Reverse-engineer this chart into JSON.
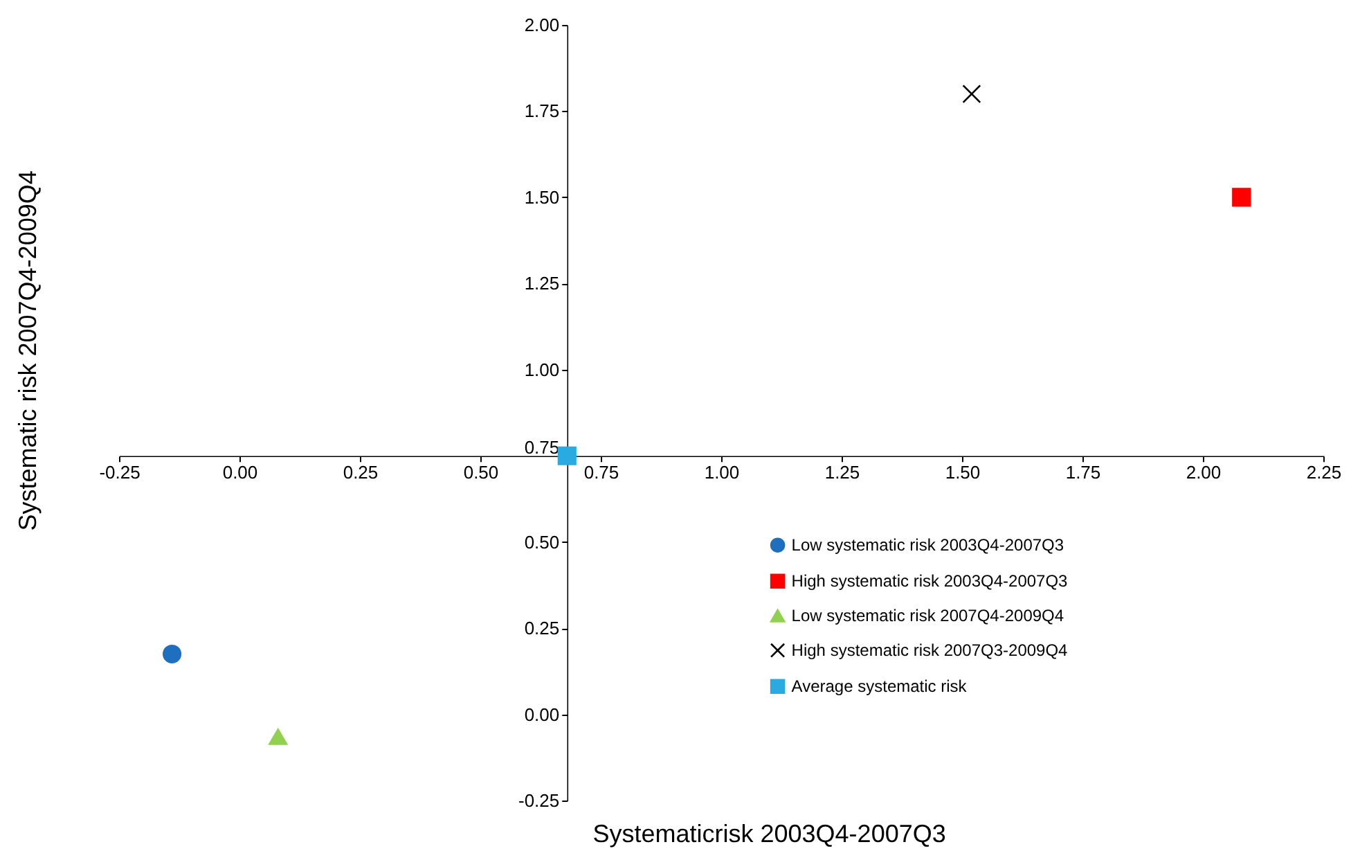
{
  "chart_data": {
    "type": "scatter",
    "xlabel": "Systematicrisk 2003Q4-2007Q3",
    "ylabel": "Systematic risk 2007Q4-2009Q4",
    "xlim": [
      -0.25,
      2.25
    ],
    "ylim": [
      -0.25,
      2.0
    ],
    "xticks": [
      {
        "value": -0.25,
        "label": "-0.25"
      },
      {
        "value": 0,
        "label": "0.00"
      },
      {
        "value": 0.25,
        "label": "0.25"
      },
      {
        "value": 0.5,
        "label": "0.50"
      },
      {
        "value": 0.75,
        "label": "0.75"
      },
      {
        "value": 1,
        "label": "1.00"
      },
      {
        "value": 1.25,
        "label": "1.25"
      },
      {
        "value": 1.5,
        "label": "1.50"
      },
      {
        "value": 1.75,
        "label": "1.75"
      },
      {
        "value": 2,
        "label": "2.00"
      },
      {
        "value": 2.25,
        "label": "2.25"
      }
    ],
    "yticks": [
      {
        "value": -0.25,
        "label": "-0.25"
      },
      {
        "value": 0,
        "label": "0.00"
      },
      {
        "value": 0.25,
        "label": "0.25"
      },
      {
        "value": 0.5,
        "label": "0.50"
      },
      {
        "value": 0.75,
        "label": "0.75"
      },
      {
        "value": 1,
        "label": "1.00"
      },
      {
        "value": 1.25,
        "label": "1.25"
      },
      {
        "value": 1.5,
        "label": "1.50"
      },
      {
        "value": 1.75,
        "label": "1.75"
      },
      {
        "value": 2,
        "label": "2.00"
      }
    ],
    "grid": false,
    "legend": "bottom right",
    "series": [
      {
        "name": "Low systematic risk 2003Q4-2007Q3",
        "color": "#1f6fc0",
        "marker": "circle",
        "x": [
          -0.14
        ],
        "values": [
          0.175
        ]
      },
      {
        "name": "High systematic risk 2003Q4-2007Q3",
        "color": "#ff0000",
        "marker": "square",
        "x": [
          2.08
        ],
        "values": [
          1.5
        ]
      },
      {
        "name": "Low systematic risk 2007Q4-2009Q4",
        "color": "#92d050",
        "marker": "triangle",
        "x": [
          0.08
        ],
        "values": [
          -0.065
        ]
      },
      {
        "name": "High systematic risk 2007Q3-2009Q4",
        "color": "#000000",
        "marker": "cross",
        "x": [
          1.52
        ],
        "values": [
          1.8
        ]
      },
      {
        "name": "Average systematic risk",
        "color": "#29abe2",
        "marker": "square",
        "x": [
          0.68
        ],
        "values": [
          0.75
        ]
      }
    ]
  }
}
